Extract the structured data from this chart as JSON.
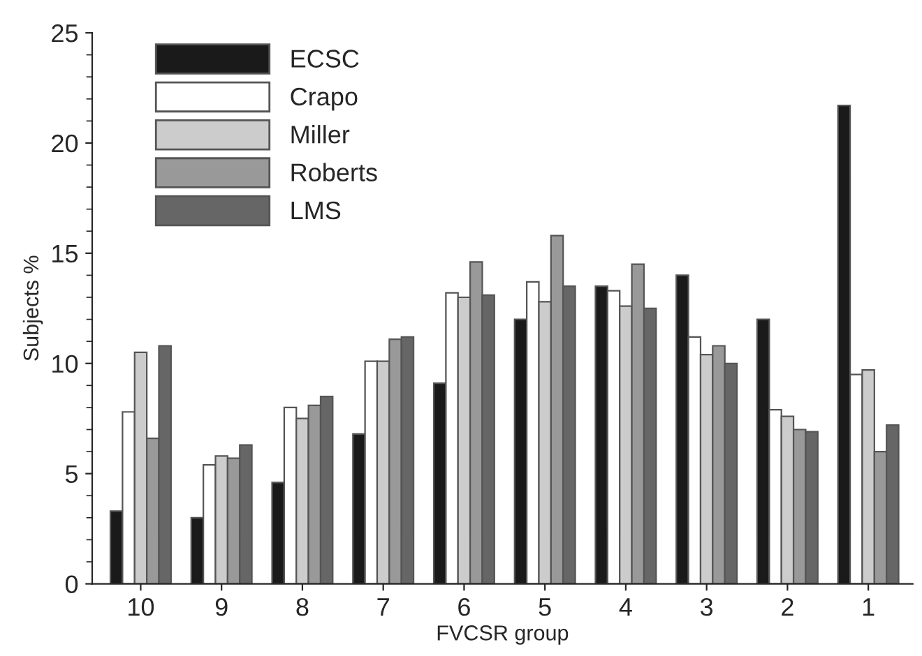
{
  "chart_data": {
    "type": "bar",
    "xlabel": "FVCSR group",
    "ylabel": "Subjects %",
    "categories": [
      "10",
      "9",
      "8",
      "7",
      "6",
      "5",
      "4",
      "3",
      "2",
      "1"
    ],
    "series": [
      {
        "name": "ECSC",
        "color": "#1a1a1a",
        "values": [
          3.3,
          3.0,
          4.6,
          6.8,
          9.1,
          12.0,
          13.5,
          14.0,
          12.0,
          21.7
        ]
      },
      {
        "name": "Crapo",
        "color": "#ffffff",
        "values": [
          7.8,
          5.4,
          8.0,
          10.1,
          13.2,
          13.7,
          13.3,
          11.2,
          7.9,
          9.5
        ]
      },
      {
        "name": "Miller",
        "color": "#cccccc",
        "values": [
          10.5,
          5.8,
          7.5,
          10.1,
          13.0,
          12.8,
          12.6,
          10.4,
          7.6,
          9.7
        ]
      },
      {
        "name": "Roberts",
        "color": "#999999",
        "values": [
          6.6,
          5.7,
          8.1,
          11.1,
          14.6,
          15.8,
          14.5,
          10.8,
          7.0,
          6.0
        ]
      },
      {
        "name": "LMS",
        "color": "#666666",
        "values": [
          10.8,
          6.3,
          8.5,
          11.2,
          13.1,
          13.5,
          12.5,
          10.0,
          6.9,
          7.2
        ]
      }
    ],
    "ylim": [
      0,
      25
    ],
    "yticks": [
      0,
      5,
      10,
      15,
      20,
      25
    ],
    "grid": false,
    "legend": "top left"
  }
}
